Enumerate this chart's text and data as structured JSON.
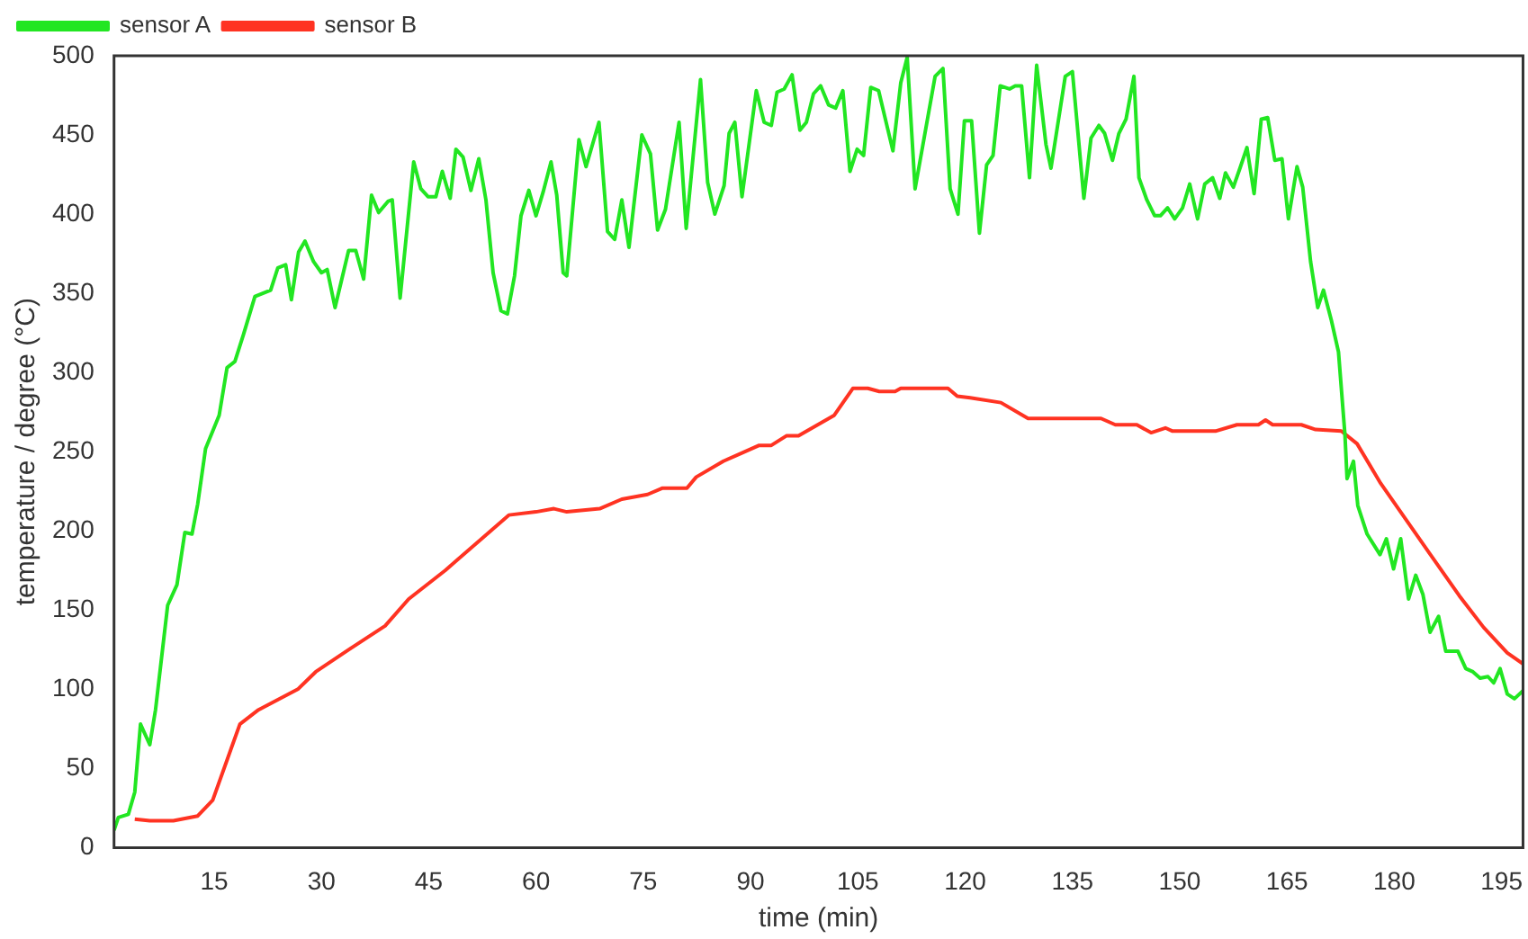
{
  "chart_data": {
    "type": "line",
    "xlabel": "time (min)",
    "ylabel": "temperature / degree (°C)",
    "xlim": [
      1,
      198
    ],
    "xticks": [
      15,
      30,
      45,
      60,
      75,
      90,
      105,
      120,
      135,
      150,
      165,
      180,
      195
    ],
    "ylim": [
      0,
      500
    ],
    "yticks": [
      0,
      50,
      100,
      150,
      200,
      250,
      300,
      350,
      400,
      450,
      500
    ],
    "legend": "top left",
    "marker": "none",
    "line_style": "solid",
    "series": [
      {
        "name": "sensor A",
        "color": "#22e622",
        "x": [
          1,
          1.6,
          3,
          3.9,
          4.7,
          6,
          6.8,
          8.5,
          9.8,
          10.9,
          11.9,
          12.7,
          13.8,
          15.7,
          16.8,
          17.9,
          19.1,
          20.7,
          22.9,
          23.9,
          25,
          25.8,
          26.8,
          27.7,
          28.9,
          30,
          30.8,
          31.9,
          33.8,
          34.8,
          35.9,
          37,
          38,
          39.3,
          39.9,
          41,
          42.9,
          43.9,
          44.9,
          46,
          46.9,
          48,
          48.8,
          49.8,
          50.9,
          52,
          53,
          54,
          55.1,
          56,
          57,
          57.9,
          59,
          60,
          61,
          62.1,
          62.9,
          63.8,
          64.3,
          66,
          67,
          68.8,
          70,
          71,
          72,
          73,
          74.8,
          76,
          77,
          78.1,
          80,
          81,
          83,
          84,
          85,
          86.3,
          87,
          87.8,
          88.8,
          90.8,
          91.9,
          92.9,
          93.7,
          94.7,
          95.8,
          96.9,
          97.8,
          98.8,
          99.8,
          100.9,
          101.9,
          102.9,
          103.9,
          104.9,
          105.8,
          106.8,
          107.9,
          109.9,
          111,
          111.9,
          113,
          115.8,
          116.9,
          117.9,
          119,
          119.9,
          120.9,
          122,
          123,
          123.9,
          124.9,
          126.2,
          127,
          127.9,
          129,
          130,
          131.3,
          132,
          134,
          135,
          136.6,
          137.6,
          138.7,
          139.5,
          140.6,
          141.5,
          142.5,
          143.6,
          144.3,
          145.4,
          146.5,
          147.3,
          148.3,
          149.3,
          150.4,
          151.4,
          152.5,
          153.5,
          154.6,
          155.6,
          156.4,
          157.5,
          158.5,
          159.4,
          160.4,
          161.4,
          162.3,
          163.3,
          164.3,
          165.2,
          166.4,
          167.2,
          168.3,
          169.3,
          170.1,
          171.2,
          172.2,
          173.1,
          173.4,
          174.3,
          174.9,
          176.2,
          178,
          178.9,
          179.9,
          180.9,
          182,
          183,
          184,
          185,
          186.2,
          187.2,
          188.9,
          190,
          191,
          192,
          193.1,
          193.9,
          194.8,
          195.8,
          196.8,
          198
        ],
        "values": [
          11,
          19,
          21,
          35,
          78,
          65,
          87,
          153,
          166,
          199,
          198,
          217,
          252,
          273,
          303,
          307,
          324,
          348,
          352,
          366,
          368,
          346,
          376,
          383,
          370,
          363,
          365,
          341,
          377,
          377,
          359,
          412,
          401,
          408,
          409,
          347,
          433,
          416,
          411,
          411,
          427,
          410,
          441,
          436,
          415,
          435,
          409,
          363,
          339,
          337,
          361,
          399,
          415,
          399,
          414,
          433,
          412,
          363,
          361,
          447,
          430,
          458,
          389,
          384,
          409,
          379,
          450,
          438,
          390,
          403,
          458,
          391,
          485,
          420,
          400,
          418,
          451,
          458,
          411,
          478,
          458,
          456,
          477,
          479,
          488,
          453,
          458,
          476,
          481,
          469,
          467,
          478,
          427,
          441,
          437,
          480,
          478,
          440,
          483,
          499,
          416,
          487,
          492,
          416,
          400,
          459,
          459,
          388,
          431,
          437,
          481,
          479,
          481,
          481,
          423,
          494,
          444,
          429,
          487,
          490,
          410,
          448,
          456,
          451,
          434,
          451,
          460,
          487,
          423,
          409,
          399,
          399,
          404,
          397,
          404,
          419,
          397,
          419,
          423,
          410,
          426,
          417,
          430,
          442,
          413,
          460,
          461,
          434,
          435,
          397,
          430,
          417,
          370,
          341,
          352,
          333,
          313,
          261,
          233,
          244,
          216,
          198,
          185,
          195,
          176,
          195,
          157,
          172,
          160,
          136,
          146,
          124,
          124,
          113,
          111,
          107,
          108,
          104,
          113,
          97,
          94,
          99
        ]
      },
      {
        "name": "sensor B",
        "color": "#ff3322",
        "x": [
          3.9,
          6,
          9.3,
          12.7,
          14.8,
          18.6,
          21.2,
          26.7,
          29.2,
          33.8,
          38.9,
          42.2,
          47.3,
          52.4,
          56.2,
          60,
          62.5,
          64.3,
          68.9,
          72,
          75.6,
          77.7,
          81.1,
          82.4,
          86.2,
          91.2,
          92.9,
          95,
          96.7,
          101.7,
          104.3,
          106.4,
          108,
          110.2,
          111,
          117.6,
          118.9,
          120.7,
          125,
          128.8,
          132.7,
          139,
          141,
          144,
          146,
          148,
          149,
          155,
          158,
          161,
          162,
          163,
          167,
          169,
          172.6,
          174.8,
          178.1,
          181.5,
          184.9,
          189.1,
          192.5,
          195.8,
          198
        ],
        "values": [
          18,
          17,
          17,
          20,
          30,
          78,
          87,
          100,
          111,
          125,
          140,
          157,
          175,
          195,
          210,
          212,
          214,
          212,
          214,
          220,
          223,
          227,
          227,
          234,
          244,
          254,
          254,
          260,
          260,
          273,
          290,
          290,
          288,
          288,
          290,
          290,
          285,
          284,
          281,
          271,
          271,
          271,
          267,
          267,
          262,
          265,
          263,
          263,
          267,
          267,
          270,
          267,
          267,
          264,
          263,
          255,
          230,
          208,
          186,
          159,
          139,
          123,
          116
        ]
      }
    ]
  }
}
